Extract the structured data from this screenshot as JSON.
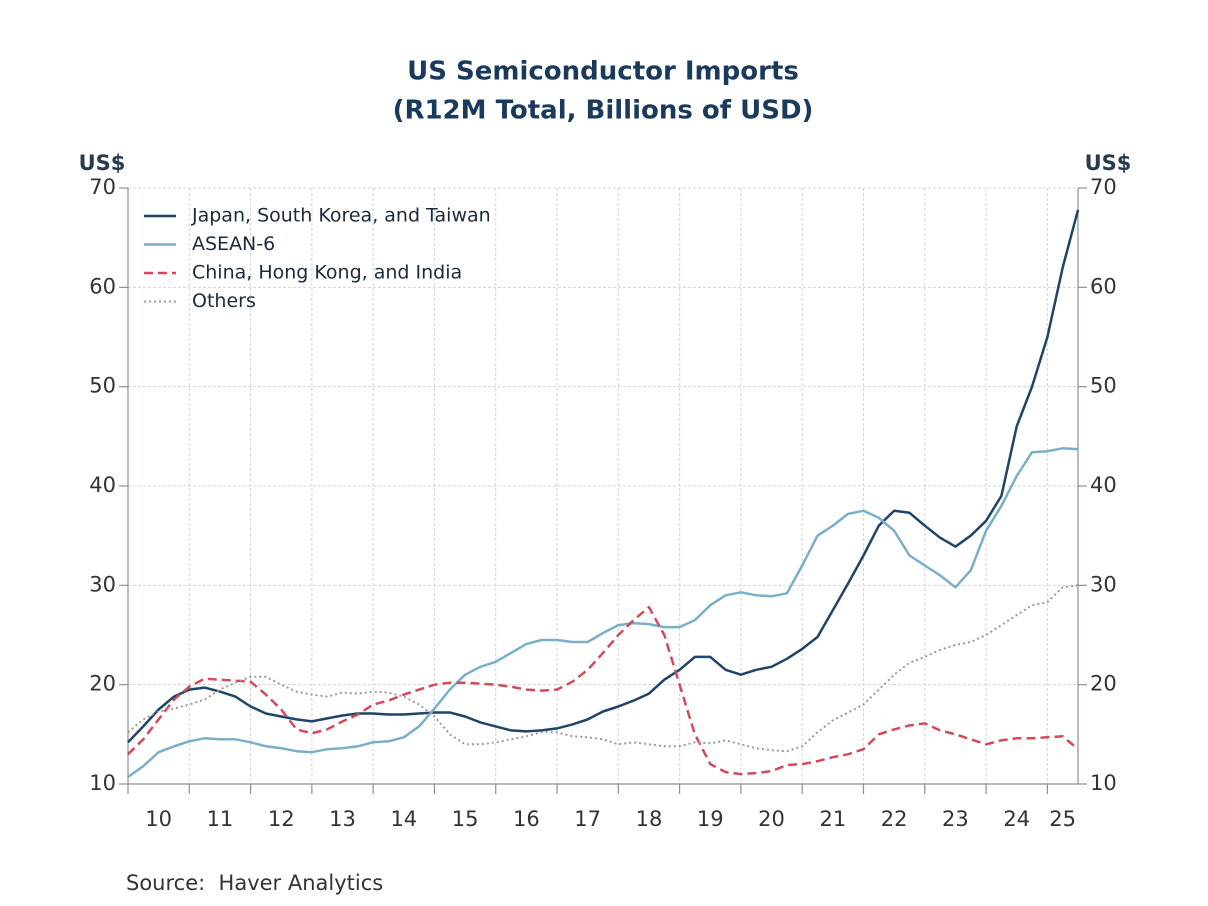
{
  "chart_data": {
    "type": "line",
    "title": "US Semiconductor Imports",
    "subtitle": "(R12M Total, Billions of USD)",
    "ylabel": "US$",
    "y2label": "US$",
    "source": "Source:  Haver Analytics",
    "xlim": [
      2010,
      2025.5
    ],
    "xticks": [
      {
        "value": 2010.5,
        "label": "10"
      },
      {
        "value": 2011.5,
        "label": "11"
      },
      {
        "value": 2012.5,
        "label": "12"
      },
      {
        "value": 2013.5,
        "label": "13"
      },
      {
        "value": 2014.5,
        "label": "14"
      },
      {
        "value": 2015.5,
        "label": "15"
      },
      {
        "value": 2016.5,
        "label": "16"
      },
      {
        "value": 2017.5,
        "label": "17"
      },
      {
        "value": 2018.5,
        "label": "18"
      },
      {
        "value": 2019.5,
        "label": "19"
      },
      {
        "value": 2020.5,
        "label": "20"
      },
      {
        "value": 2021.5,
        "label": "21"
      },
      {
        "value": 2022.5,
        "label": "22"
      },
      {
        "value": 2023.5,
        "label": "23"
      },
      {
        "value": 2024.5,
        "label": "24"
      },
      {
        "value": 2025.25,
        "label": "25"
      }
    ],
    "xminor_ticks": [
      2010,
      2011,
      2012,
      2013,
      2014,
      2015,
      2016,
      2017,
      2018,
      2019,
      2020,
      2021,
      2022,
      2023,
      2024,
      2025
    ],
    "ylim": [
      10,
      70
    ],
    "yticks": [
      10,
      20,
      30,
      40,
      50,
      60,
      70
    ],
    "y2lim": [
      10,
      70
    ],
    "y2ticks": [
      10,
      20,
      30,
      40,
      50,
      60,
      70
    ],
    "grid": true,
    "legend": "upper left",
    "x": [
      2010,
      2010.25,
      2010.5,
      2010.75,
      2011,
      2011.25,
      2011.5,
      2011.75,
      2012,
      2012.25,
      2012.5,
      2012.75,
      2013,
      2013.25,
      2013.5,
      2013.75,
      2014,
      2014.25,
      2014.5,
      2014.75,
      2015,
      2015.25,
      2015.5,
      2015.75,
      2016,
      2016.25,
      2016.5,
      2016.75,
      2017,
      2017.25,
      2017.5,
      2017.75,
      2018,
      2018.25,
      2018.5,
      2018.75,
      2019,
      2019.25,
      2019.5,
      2019.75,
      2020,
      2020.25,
      2020.5,
      2020.75,
      2021,
      2021.25,
      2021.5,
      2021.75,
      2022,
      2022.25,
      2022.5,
      2022.75,
      2023,
      2023.25,
      2023.5,
      2023.75,
      2024,
      2024.25,
      2024.5,
      2024.75,
      2025,
      2025.25,
      2025.5
    ],
    "series": [
      {
        "name": "Japan, South Korea, and Taiwan",
        "color": "#1f4466",
        "style": "solid",
        "values": [
          14.2,
          15.8,
          17.5,
          18.8,
          19.5,
          19.7,
          19.3,
          18.8,
          17.8,
          17.1,
          16.8,
          16.5,
          16.3,
          16.6,
          16.9,
          17.1,
          17.1,
          17.0,
          17.0,
          17.1,
          17.2,
          17.2,
          16.8,
          16.2,
          15.8,
          15.4,
          15.3,
          15.4,
          15.6,
          16.0,
          16.5,
          17.3,
          17.8,
          18.4,
          19.1,
          20.5,
          21.5,
          22.8,
          22.8,
          21.5,
          21.0,
          21.5,
          21.8,
          22.6,
          23.6,
          24.8,
          27.5,
          30.2,
          33.0,
          36.0,
          37.5,
          37.3,
          36.0,
          34.8,
          33.9,
          35.0,
          36.5,
          39.0,
          46.0,
          50.0,
          55.0,
          62.0,
          67.8
        ]
      },
      {
        "name": "ASEAN-6",
        "color": "#7aafc8",
        "style": "solid",
        "values": [
          10.7,
          11.8,
          13.2,
          13.8,
          14.3,
          14.6,
          14.5,
          14.5,
          14.2,
          13.8,
          13.6,
          13.3,
          13.2,
          13.5,
          13.6,
          13.8,
          14.2,
          14.3,
          14.7,
          15.8,
          17.6,
          19.5,
          21.0,
          21.8,
          22.3,
          23.2,
          24.1,
          24.5,
          24.5,
          24.3,
          24.3,
          25.2,
          26.0,
          26.2,
          26.1,
          25.8,
          25.8,
          26.5,
          28.0,
          29.0,
          29.3,
          29.0,
          28.9,
          29.2,
          32.0,
          35.0,
          36.0,
          37.2,
          37.5,
          36.8,
          35.5,
          33.0,
          32.0,
          31.0,
          29.8,
          31.5,
          35.5,
          38.0,
          41.0,
          43.4,
          43.5,
          43.8,
          43.7
        ]
      },
      {
        "name": "China, Hong Kong, and India",
        "color": "#d24a5c",
        "style": "dashed",
        "values": [
          13.0,
          14.5,
          16.5,
          18.5,
          19.8,
          20.6,
          20.5,
          20.4,
          20.3,
          19.0,
          17.5,
          15.5,
          15.1,
          15.5,
          16.3,
          17.0,
          18.0,
          18.4,
          19.0,
          19.5,
          20.0,
          20.2,
          20.2,
          20.1,
          20.0,
          19.8,
          19.5,
          19.4,
          19.5,
          20.3,
          21.5,
          23.2,
          25.0,
          26.5,
          27.8,
          25.0,
          20.0,
          15.0,
          12.0,
          11.2,
          11.0,
          11.1,
          11.3,
          11.9,
          12.0,
          12.3,
          12.7,
          13.0,
          13.5,
          15.0,
          15.5,
          15.9,
          16.1,
          15.4,
          15.0,
          14.5,
          14.0,
          14.4,
          14.6,
          14.6,
          14.7,
          14.8,
          13.5
        ]
      },
      {
        "name": "Others",
        "color": "#9a9a9a",
        "style": "dotted",
        "values": [
          15.2,
          16.5,
          17.3,
          17.6,
          18.0,
          18.5,
          19.5,
          20.2,
          20.8,
          20.8,
          20.0,
          19.3,
          19.0,
          18.8,
          19.2,
          19.1,
          19.3,
          19.2,
          18.8,
          18.0,
          16.8,
          15.0,
          14.0,
          14.0,
          14.2,
          14.5,
          14.8,
          15.2,
          15.2,
          14.8,
          14.7,
          14.5,
          14.0,
          14.2,
          14.0,
          13.8,
          13.8,
          14.2,
          14.1,
          14.4,
          14.0,
          13.6,
          13.4,
          13.3,
          13.8,
          15.2,
          16.4,
          17.2,
          18.0,
          19.5,
          21.0,
          22.2,
          22.8,
          23.5,
          24.0,
          24.3,
          25.0,
          26.0,
          27.0,
          28.0,
          28.3,
          29.8,
          30.0
        ]
      }
    ]
  }
}
